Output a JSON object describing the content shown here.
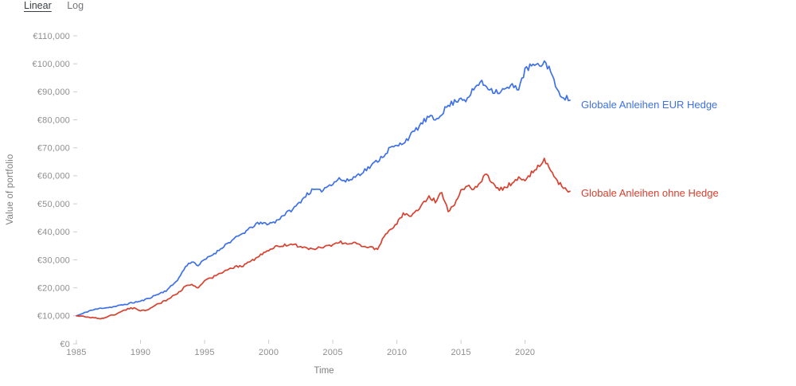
{
  "toggles": {
    "linear": "Linear",
    "log": "Log",
    "active_scale": "Linear"
  },
  "colors": {
    "hedge": "#3e70e8",
    "no_hedge": "#d8402f",
    "tick_text": "#8e8e8e",
    "axis_text": "#7d7d7d",
    "toggle_active": "#3c4043",
    "toggle_inactive": "#73777b",
    "tick_mark": "#cccccc"
  },
  "chart_data": {
    "type": "line",
    "title": "",
    "xlabel": "Time",
    "ylabel": "Value of portfolio",
    "ylim": [
      0,
      110000
    ],
    "y_tick_step": 10000,
    "y_tick_labels": [
      "€0",
      "€10,000",
      "€20,000",
      "€30,000",
      "€40,000",
      "€50,000",
      "€60,000",
      "€70,000",
      "€80,000",
      "€90,000",
      "€100,000",
      "€110,000"
    ],
    "x_ticks": [
      1985,
      1990,
      1995,
      2000,
      2005,
      2010,
      2015,
      2020
    ],
    "x_tick_labels": [
      "1985",
      "1990",
      "1995",
      "2000",
      "2005",
      "2010",
      "2015",
      "2020"
    ],
    "grid": false,
    "legend_position": "end-of-line",
    "x": [
      1985,
      1985.5,
      1986,
      1986.5,
      1987,
      1987.5,
      1988,
      1988.5,
      1989,
      1989.5,
      1990,
      1990.5,
      1991,
      1991.5,
      1992,
      1992.5,
      1993,
      1993.5,
      1994,
      1994.5,
      1995,
      1995.5,
      1996,
      1996.5,
      1997,
      1997.5,
      1998,
      1998.5,
      1999,
      1999.5,
      2000,
      2000.5,
      2001,
      2001.5,
      2002,
      2002.5,
      2003,
      2003.5,
      2004,
      2004.5,
      2005,
      2005.5,
      2006,
      2006.5,
      2007,
      2007.5,
      2008,
      2008.5,
      2009,
      2009.5,
      2010,
      2010.5,
      2011,
      2011.5,
      2012,
      2012.5,
      2013,
      2013.5,
      2014,
      2014.5,
      2015,
      2015.5,
      2016,
      2016.5,
      2017,
      2017.5,
      2018,
      2018.5,
      2019,
      2019.5,
      2020,
      2020.5,
      2021,
      2021.5,
      2022,
      2022.5,
      2023,
      2023.5
    ],
    "series": [
      {
        "name": "Globale Anleihen EUR Hedge",
        "color_key": "hedge",
        "values": [
          10000,
          10800,
          11800,
          12300,
          12800,
          13000,
          13300,
          13800,
          14300,
          14800,
          15200,
          16000,
          17000,
          18000,
          19000,
          21000,
          23500,
          27500,
          29500,
          28000,
          30000,
          31500,
          33000,
          35000,
          36500,
          38000,
          39500,
          41000,
          42800,
          43000,
          43000,
          43500,
          45500,
          47000,
          48500,
          51000,
          53500,
          55000,
          54500,
          56000,
          57500,
          59000,
          58000,
          59000,
          60500,
          62000,
          63500,
          65500,
          67500,
          70000,
          70500,
          72000,
          74000,
          76500,
          79000,
          81000,
          80000,
          82500,
          85000,
          86500,
          88000,
          87000,
          91000,
          93500,
          92000,
          90500,
          90000,
          91000,
          92000,
          91500,
          97500,
          99500,
          99000,
          100500,
          98000,
          90000,
          88500,
          87000
        ]
      },
      {
        "name": "Globale Anleihen ohne Hedge",
        "color_key": "no_hedge",
        "values": [
          10000,
          9800,
          9500,
          9200,
          9000,
          9800,
          10500,
          11500,
          12500,
          12800,
          11800,
          12000,
          13500,
          14500,
          15500,
          17000,
          18500,
          20500,
          21000,
          20000,
          22500,
          23500,
          24500,
          26000,
          27000,
          27500,
          28000,
          29500,
          30500,
          32000,
          33500,
          34500,
          35000,
          35500,
          35500,
          34500,
          34000,
          33800,
          34500,
          34800,
          35000,
          36500,
          35800,
          36000,
          35500,
          34800,
          34500,
          33500,
          38500,
          41000,
          43000,
          46500,
          45500,
          47500,
          50000,
          52500,
          51000,
          54000,
          47500,
          50000,
          55000,
          56500,
          55000,
          58000,
          60500,
          57000,
          55000,
          56000,
          57500,
          59000,
          58500,
          61000,
          63500,
          65500,
          62000,
          58000,
          56000,
          54500
        ]
      }
    ]
  }
}
